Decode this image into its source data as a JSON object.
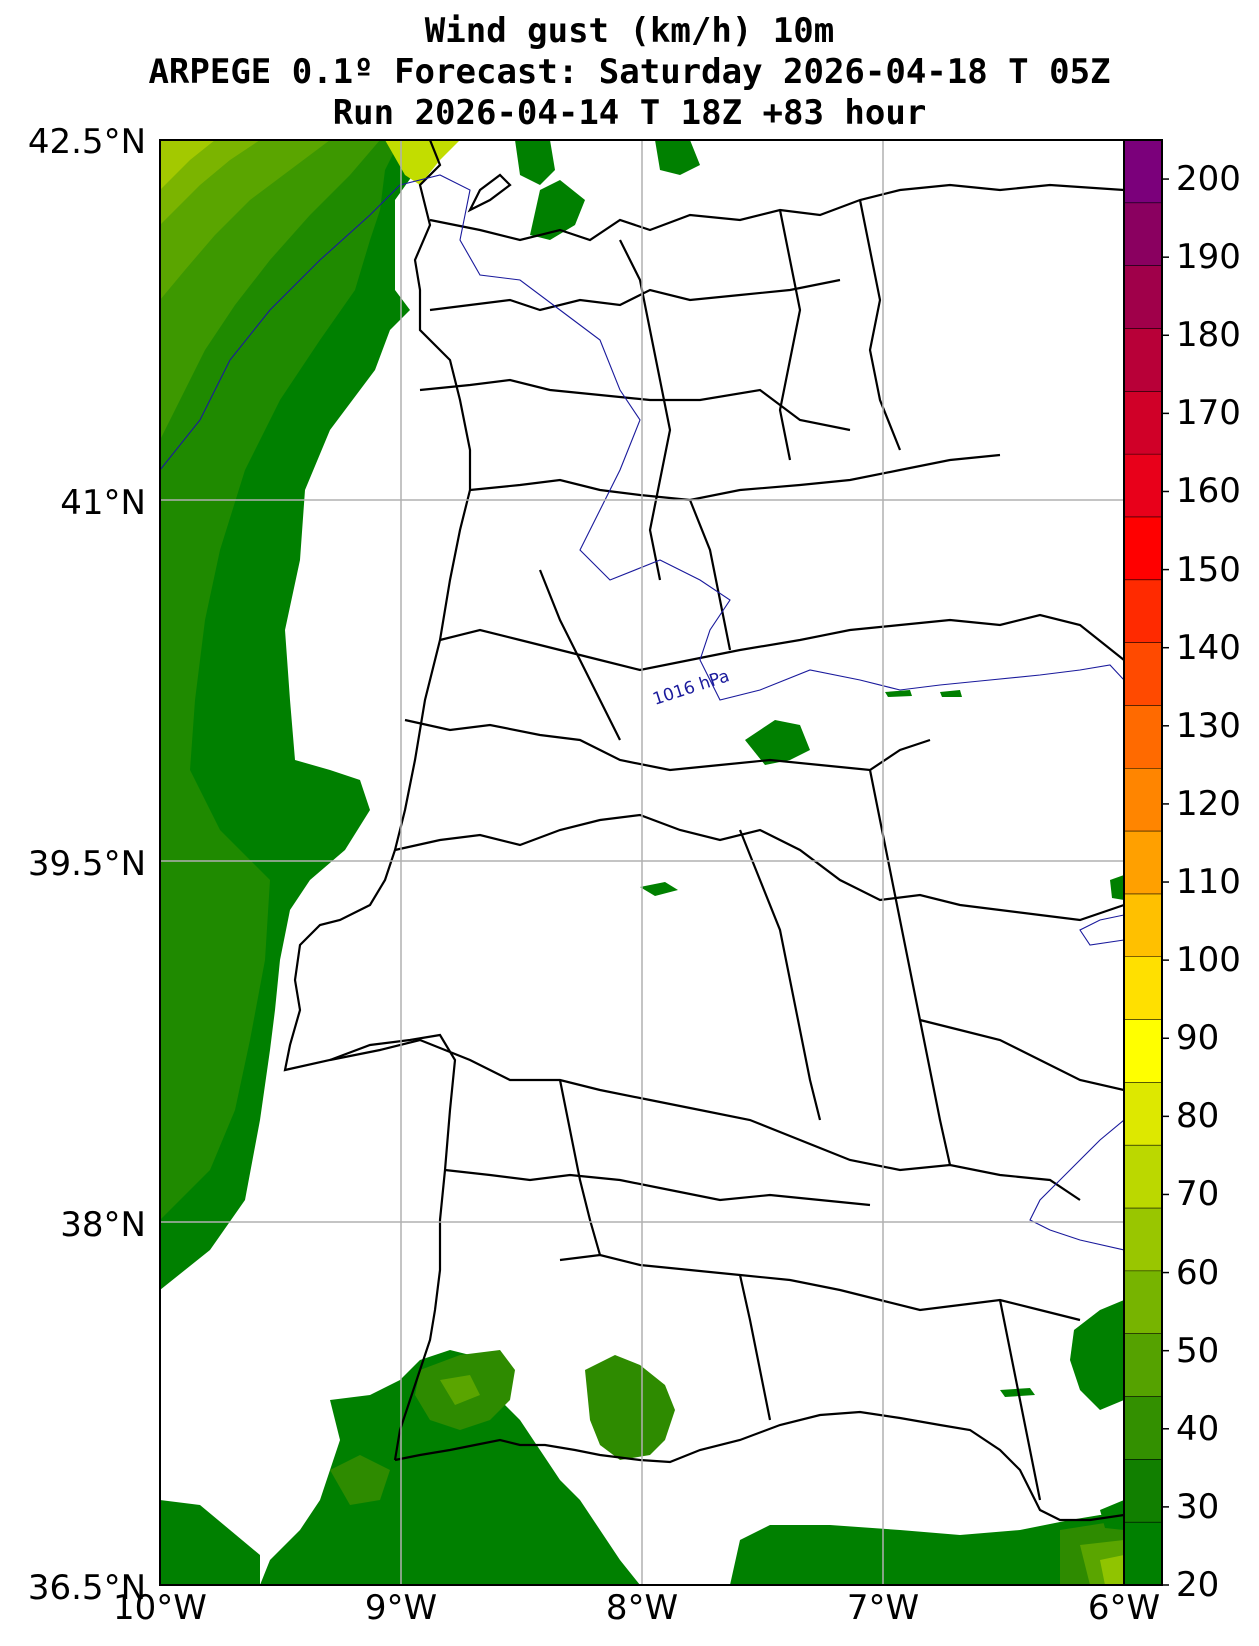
{
  "title": {
    "line1": "Wind gust (km/h) 10m",
    "line2": "ARPEGE 0.1º Forecast: Saturday 2026-04-18 T 05Z",
    "line3": "Run 2026-04-14 T 18Z +83 hour"
  },
  "axes": {
    "lat_labels": [
      "42.5°N",
      "41°N",
      "39.5°N",
      "38°N",
      "36.5°N"
    ],
    "lon_labels": [
      "10°W",
      "9°W",
      "8°W",
      "7°W",
      "6°W"
    ]
  },
  "isobar_label": "1016 hPa",
  "colorbar": {
    "ticks": [
      "200",
      "190",
      "180",
      "170",
      "160",
      "150",
      "140",
      "130",
      "120",
      "110",
      "100",
      "90",
      "80",
      "70",
      "60",
      "50",
      "40",
      "30",
      "20"
    ],
    "colors": [
      "#7b007b",
      "#8a0060",
      "#a0004a",
      "#b80038",
      "#d00028",
      "#e8001a",
      "#ff0000",
      "#ff2a00",
      "#ff4a00",
      "#ff6a00",
      "#ff8500",
      "#ffa000",
      "#ffc000",
      "#ffe000",
      "#ffff00",
      "#dde800",
      "#bbd800",
      "#99c600",
      "#77b400",
      "#55a200",
      "#339000",
      "#117f00",
      "#008000"
    ]
  },
  "legend_colors": {
    "land": "#ffffff",
    "gust_20_30": "#008000",
    "gust_30_40": "#2e8b00",
    "gust_40_50": "#5aa500",
    "gust_50_60": "#90c400",
    "gust_60_70": "#c2dd00",
    "isobar": "#1a1a9c",
    "grid": "#b0b0b0"
  }
}
